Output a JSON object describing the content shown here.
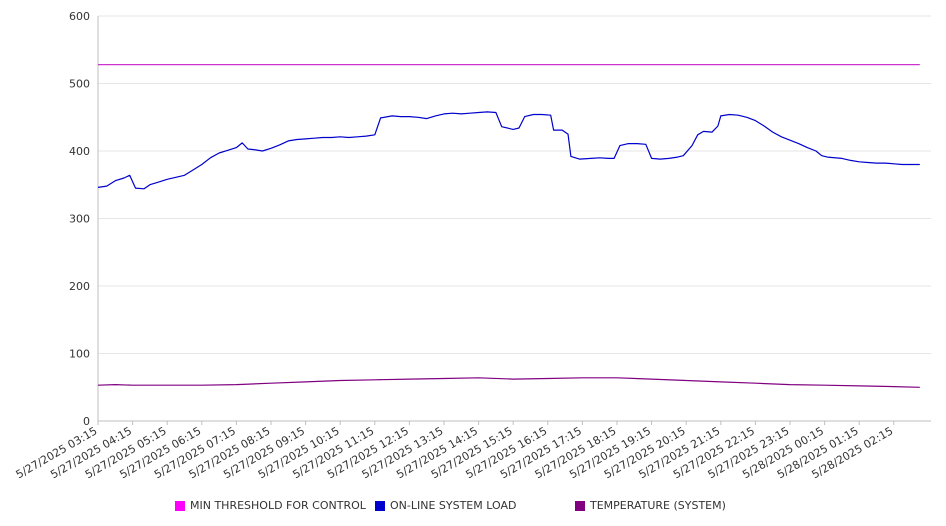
{
  "chart_data": {
    "type": "line",
    "title": "",
    "xlabel": "",
    "ylabel": "",
    "ylim": [
      0,
      600
    ],
    "yticks": [
      "0",
      "100",
      "200",
      "300",
      "400",
      "500",
      "600"
    ],
    "grid": true,
    "legend_position": "bottom",
    "x_tick_labels": [
      "5/27/2025 03:15",
      "5/27/2025 04:15",
      "5/27/2025 05:15",
      "5/27/2025 06:15",
      "5/27/2025 07:15",
      "5/27/2025 08:15",
      "5/27/2025 09:15",
      "5/27/2025 10:15",
      "5/27/2025 11:15",
      "5/27/2025 12:15",
      "5/27/2025 13:15",
      "5/27/2025 14:15",
      "5/27/2025 15:15",
      "5/27/2025 16:15",
      "5/27/2025 17:15",
      "5/27/2025 18:15",
      "5/27/2025 19:15",
      "5/27/2025 20:15",
      "5/27/2025 21:15",
      "5/27/2025 22:15",
      "5/27/2025 23:15",
      "5/28/2025 00:15",
      "5/28/2025 01:15",
      "5/28/2025 02:15"
    ],
    "series": [
      {
        "name": "MIN THRESHOLD FOR CONTROL",
        "color": "#cc33cc",
        "points": [
          [
            "5/27/2025 03:15",
            528
          ],
          [
            "5/28/2025 03:00",
            528
          ]
        ]
      },
      {
        "name": "ON-LINE SYSTEM LOAD",
        "color": "#0000cc",
        "points": [
          [
            "5/27/2025 03:15",
            346
          ],
          [
            "5/27/2025 03:30",
            348
          ],
          [
            "5/27/2025 03:45",
            356
          ],
          [
            "5/27/2025 04:00",
            360
          ],
          [
            "5/27/2025 04:10",
            364
          ],
          [
            "5/27/2025 04:20",
            345
          ],
          [
            "5/27/2025 04:35",
            344
          ],
          [
            "5/27/2025 04:45",
            350
          ],
          [
            "5/27/2025 05:00",
            354
          ],
          [
            "5/27/2025 05:15",
            358
          ],
          [
            "5/27/2025 05:30",
            361
          ],
          [
            "5/27/2025 05:45",
            364
          ],
          [
            "5/27/2025 06:00",
            372
          ],
          [
            "5/27/2025 06:15",
            380
          ],
          [
            "5/27/2025 06:30",
            390
          ],
          [
            "5/27/2025 06:45",
            397
          ],
          [
            "5/27/2025 07:00",
            401
          ],
          [
            "5/27/2025 07:15",
            405
          ],
          [
            "5/27/2025 07:25",
            412
          ],
          [
            "5/27/2025 07:35",
            403
          ],
          [
            "5/27/2025 07:45",
            402
          ],
          [
            "5/27/2025 08:00",
            400
          ],
          [
            "5/27/2025 08:15",
            404
          ],
          [
            "5/27/2025 08:30",
            409
          ],
          [
            "5/27/2025 08:45",
            415
          ],
          [
            "5/27/2025 09:00",
            417
          ],
          [
            "5/27/2025 09:15",
            418
          ],
          [
            "5/27/2025 09:30",
            419
          ],
          [
            "5/27/2025 09:45",
            420
          ],
          [
            "5/27/2025 10:00",
            420
          ],
          [
            "5/27/2025 10:15",
            421
          ],
          [
            "5/27/2025 10:30",
            420
          ],
          [
            "5/27/2025 10:45",
            421
          ],
          [
            "5/27/2025 11:00",
            422
          ],
          [
            "5/27/2025 11:15",
            424
          ],
          [
            "5/27/2025 11:25",
            449
          ],
          [
            "5/27/2025 11:45",
            452
          ],
          [
            "5/27/2025 12:00",
            451
          ],
          [
            "5/27/2025 12:15",
            451
          ],
          [
            "5/27/2025 12:30",
            450
          ],
          [
            "5/27/2025 12:45",
            448
          ],
          [
            "5/27/2025 13:00",
            452
          ],
          [
            "5/27/2025 13:15",
            455
          ],
          [
            "5/27/2025 13:30",
            456
          ],
          [
            "5/27/2025 13:45",
            455
          ],
          [
            "5/27/2025 14:00",
            456
          ],
          [
            "5/27/2025 14:15",
            457
          ],
          [
            "5/27/2025 14:30",
            458
          ],
          [
            "5/27/2025 14:45",
            457
          ],
          [
            "5/27/2025 14:55",
            436
          ],
          [
            "5/27/2025 15:15",
            432
          ],
          [
            "5/27/2025 15:25",
            434
          ],
          [
            "5/27/2025 15:35",
            451
          ],
          [
            "5/27/2025 15:50",
            454
          ],
          [
            "5/27/2025 16:05",
            454
          ],
          [
            "5/27/2025 16:20",
            453
          ],
          [
            "5/27/2025 16:25",
            431
          ],
          [
            "5/27/2025 16:40",
            431
          ],
          [
            "5/27/2025 16:50",
            425
          ],
          [
            "5/27/2025 16:55",
            392
          ],
          [
            "5/27/2025 17:10",
            388
          ],
          [
            "5/27/2025 17:30",
            389
          ],
          [
            "5/27/2025 17:45",
            390
          ],
          [
            "5/27/2025 18:00",
            389
          ],
          [
            "5/27/2025 18:10",
            389
          ],
          [
            "5/27/2025 18:20",
            408
          ],
          [
            "5/27/2025 18:35",
            411
          ],
          [
            "5/27/2025 18:50",
            411
          ],
          [
            "5/27/2025 19:05",
            410
          ],
          [
            "5/27/2025 19:15",
            389
          ],
          [
            "5/27/2025 19:30",
            388
          ],
          [
            "5/27/2025 19:45",
            389
          ],
          [
            "5/27/2025 20:00",
            391
          ],
          [
            "5/27/2025 20:10",
            393
          ],
          [
            "5/27/2025 20:25",
            408
          ],
          [
            "5/27/2025 20:35",
            424
          ],
          [
            "5/27/2025 20:45",
            429
          ],
          [
            "5/27/2025 21:00",
            428
          ],
          [
            "5/27/2025 21:10",
            437
          ],
          [
            "5/27/2025 21:15",
            452
          ],
          [
            "5/27/2025 21:30",
            454
          ],
          [
            "5/27/2025 21:45",
            453
          ],
          [
            "5/27/2025 22:00",
            450
          ],
          [
            "5/27/2025 22:15",
            445
          ],
          [
            "5/27/2025 22:30",
            437
          ],
          [
            "5/27/2025 22:45",
            428
          ],
          [
            "5/27/2025 23:00",
            421
          ],
          [
            "5/27/2025 23:15",
            416
          ],
          [
            "5/27/2025 23:30",
            411
          ],
          [
            "5/27/2025 23:45",
            405
          ],
          [
            "5/28/2025 00:00",
            400
          ],
          [
            "5/28/2025 00:10",
            393
          ],
          [
            "5/28/2025 00:20",
            391
          ],
          [
            "5/28/2025 00:45",
            389
          ],
          [
            "5/28/2025 01:00",
            386
          ],
          [
            "5/28/2025 01:15",
            384
          ],
          [
            "5/28/2025 01:30",
            383
          ],
          [
            "5/28/2025 01:45",
            382
          ],
          [
            "5/28/2025 02:00",
            382
          ],
          [
            "5/28/2025 02:15",
            381
          ],
          [
            "5/28/2025 02:30",
            380
          ],
          [
            "5/28/2025 02:45",
            380
          ],
          [
            "5/28/2025 03:00",
            380
          ]
        ]
      },
      {
        "name": "TEMPERATURE (SYSTEM)",
        "color": "#800080",
        "points": [
          [
            "5/27/2025 03:15",
            53
          ],
          [
            "5/27/2025 03:45",
            54
          ],
          [
            "5/27/2025 04:15",
            53
          ],
          [
            "5/27/2025 05:15",
            53
          ],
          [
            "5/27/2025 06:15",
            53
          ],
          [
            "5/27/2025 07:15",
            54
          ],
          [
            "5/27/2025 08:15",
            56
          ],
          [
            "5/27/2025 09:15",
            58
          ],
          [
            "5/27/2025 10:15",
            60
          ],
          [
            "5/27/2025 11:15",
            61
          ],
          [
            "5/27/2025 12:15",
            62
          ],
          [
            "5/27/2025 13:15",
            63
          ],
          [
            "5/27/2025 14:15",
            64
          ],
          [
            "5/27/2025 15:15",
            62
          ],
          [
            "5/27/2025 16:15",
            63
          ],
          [
            "5/27/2025 17:15",
            64
          ],
          [
            "5/27/2025 18:15",
            64
          ],
          [
            "5/27/2025 19:15",
            62
          ],
          [
            "5/27/2025 20:15",
            60
          ],
          [
            "5/27/2025 21:15",
            58
          ],
          [
            "5/27/2025 22:15",
            56
          ],
          [
            "5/27/2025 23:15",
            54
          ],
          [
            "5/28/2025 00:15",
            53
          ],
          [
            "5/28/2025 01:15",
            52
          ],
          [
            "5/28/2025 02:15",
            51
          ],
          [
            "5/28/2025 03:00",
            50
          ]
        ]
      }
    ]
  }
}
